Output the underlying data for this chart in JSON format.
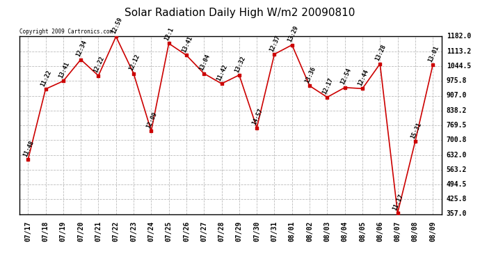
{
  "title": "Solar Radiation Daily High W/m2 20090810",
  "copyright": "Copyright 2009 Cartronics.com",
  "dates": [
    "07/17",
    "07/18",
    "07/19",
    "07/20",
    "07/21",
    "07/22",
    "07/23",
    "07/24",
    "07/25",
    "07/26",
    "07/27",
    "07/28",
    "07/29",
    "07/30",
    "07/31",
    "08/01",
    "08/02",
    "08/03",
    "08/04",
    "08/05",
    "08/06",
    "08/07",
    "08/08",
    "08/09"
  ],
  "values": [
    610,
    938,
    975,
    1075,
    1000,
    1182,
    1010,
    743,
    1150,
    1095,
    1010,
    963,
    1003,
    758,
    1100,
    1143,
    953,
    900,
    945,
    940,
    1055,
    362,
    695,
    1050
  ],
  "labels": [
    "11:48",
    "11:22",
    "13:41",
    "12:34",
    "12:22",
    "12:59",
    "12:12",
    "12:09",
    "12:1",
    "13:41",
    "13:04",
    "11:42",
    "13:32",
    "14:57",
    "12:37",
    "13:29",
    "13:36",
    "12:17",
    "12:54",
    "12:44",
    "13:28",
    "11:17",
    "15:31",
    "13:01"
  ],
  "line_color": "#cc0000",
  "marker_color": "#cc0000",
  "background_color": "#ffffff",
  "plot_bg_color": "#ffffff",
  "grid_color": "#bbbbbb",
  "ylim": [
    357.0,
    1182.0
  ],
  "yticks": [
    357.0,
    425.8,
    494.5,
    563.2,
    632.0,
    700.8,
    769.5,
    838.2,
    907.0,
    975.8,
    1044.5,
    1113.2,
    1182.0
  ],
  "title_fontsize": 11,
  "label_fontsize": 6,
  "tick_fontsize": 7,
  "copyright_fontsize": 5.5
}
